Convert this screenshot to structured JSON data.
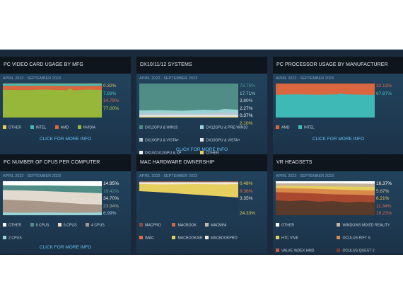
{
  "period": "APRIL 2022 - SEPTEMBER 2023",
  "more_label": "CLICK FOR MORE INFO",
  "panels": {
    "video": {
      "title": "PC VIDEO CARD USAGE BY MFG",
      "values": [
        "0.32%",
        "7.89%",
        "14.79%",
        "77.00%"
      ],
      "value_colors": [
        "#d8c35a",
        "#45c3c0",
        "#e36b49",
        "#b9d44a"
      ],
      "legend": [
        "OTHER",
        "INTEL",
        "AMD",
        "NVIDIA"
      ],
      "legend_colors": [
        "#e5cf5f",
        "#3fb9b6",
        "#d9663f",
        "#97b73a"
      ]
    },
    "dx": {
      "title": "DX10/11/12 SYSTEMS",
      "values": [
        "73.75%",
        "17.71%",
        "3.80%",
        "2.27%",
        "0.37%",
        "2.10%"
      ],
      "value_colors": [
        "#5a9e98",
        "#9ad3d6",
        "#c9d7df",
        "#e8ecef",
        "#ffffff",
        "#e8cf55"
      ],
      "legend": [
        "DX12GPU & WIN10",
        "DX12GPU & PRE-WIN10",
        "DX10GPU & VISTA+",
        "DX10GPU & VISTA+",
        "DX10/11/12GPU & XP",
        "OTHER"
      ],
      "legend_colors": [
        "#4f8d86",
        "#9ad3d6",
        "#b7c6cf",
        "#dfe5ea",
        "#f2f4f5",
        "#e5cf5f"
      ]
    },
    "cpu": {
      "title": "PC PROCESSOR USAGE BY MANUFACTURER",
      "values": [
        "32.13%",
        "67.87%"
      ],
      "value_colors": [
        "#e36b49",
        "#45c3c0"
      ],
      "legend": [
        "AMD",
        "INTEL"
      ],
      "legend_colors": [
        "#d9663f",
        "#3fb9b6"
      ]
    },
    "cores": {
      "title": "PC NUMBER OF CPUS PER COMPUTER",
      "values": [
        "14.95%",
        "19.42%",
        "34.70%",
        "23.94%",
        "6.99%"
      ],
      "value_colors": [
        "#ffffff",
        "#5a9e98",
        "#e8e2da",
        "#b8a89c",
        "#9ad3d6"
      ],
      "legend": [
        "OTHER",
        "8 CPUS",
        "6 CPUS",
        "4 CPUS",
        "2 CPUS"
      ],
      "legend_colors": [
        "#ffffff",
        "#4f8d86",
        "#e2d9cf",
        "#a89788",
        "#9ad3d6"
      ]
    },
    "mac": {
      "title": "MAC HARDWARE OWNERSHIP",
      "values": [
        "0.48%",
        "9.36%",
        "3.35%",
        "24.33%"
      ],
      "value_colors": [
        "#e8cf55",
        "#e36b49",
        "#e8e2da",
        "#e8cf55"
      ],
      "legend": [
        "MACPRO",
        "MACBOOK",
        "MACMINI",
        "IMAC",
        "MACBOOKAIR",
        "MACBOOKPRO"
      ],
      "legend_colors": [
        "#8a4a3a",
        "#d9663f",
        "#c9b8a8",
        "#e36b49",
        "#e5cf5f",
        "#f2ead8"
      ]
    },
    "vr": {
      "title": "VR HEADSETS",
      "values": [
        "16.37%",
        "5.67%",
        "6.21%",
        "11.34%",
        "19.23%"
      ],
      "value_colors": [
        "#ffffff",
        "#d9c8a8",
        "#e8cf55",
        "#e36b49",
        "#e36b49"
      ],
      "legend": [
        "OTHER",
        "WINDOWS MIXED REALITY",
        "HTC VIVE",
        "OCULUS RIFT S",
        "VALVE INDEX HMD",
        "OCULUS QUEST 2"
      ],
      "legend_colors": [
        "#ffffff",
        "#c6b49a",
        "#e5cf5f",
        "#d98a4a",
        "#c75a3a",
        "#7a3a2a"
      ]
    }
  }
}
